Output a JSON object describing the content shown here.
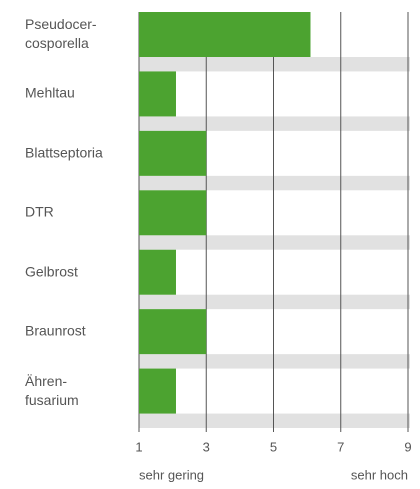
{
  "chart_data": {
    "type": "bar",
    "orientation": "horizontal",
    "categories": [
      "Pseudocer-\ncosporella",
      "Mehltau",
      "Blattseptoria",
      "DTR",
      "Gelbrost",
      "Braunrost",
      "Ähren-\nfusarium"
    ],
    "values": [
      6.1,
      2.1,
      3,
      3,
      2.1,
      3,
      2.1
    ],
    "color": "#4ca330",
    "xlim": [
      1,
      9
    ],
    "xticks": [
      1,
      3,
      5,
      7,
      9
    ],
    "grid": true,
    "x_label_low": "sehr gering",
    "x_label_high": "sehr hoch"
  }
}
